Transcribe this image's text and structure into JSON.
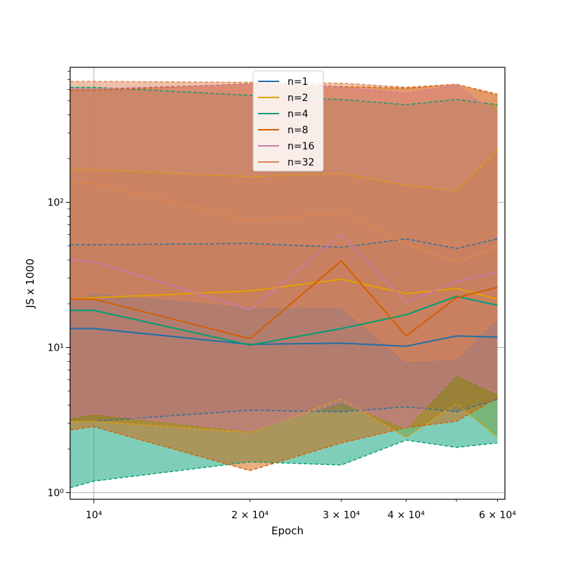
{
  "chart_data": {
    "type": "line",
    "title": "",
    "xlabel": "Epoch",
    "ylabel": "JS x 1000",
    "x_scale": "log",
    "y_scale": "log",
    "xlim": [
      9000,
      62000
    ],
    "ylim": [
      0.9,
      850
    ],
    "x": [
      9000,
      10000,
      20000,
      30000,
      40000,
      50000,
      60000
    ],
    "x_ticks": [
      {
        "value": 10000,
        "label": "10⁴"
      },
      {
        "value": 20000,
        "label": "2 × 10⁴"
      },
      {
        "value": 30000,
        "label": "3 × 10⁴"
      },
      {
        "value": 40000,
        "label": "4 × 10⁴"
      },
      {
        "value": 60000,
        "label": "6 × 10⁴"
      }
    ],
    "y_ticks": [
      {
        "value": 1,
        "label": "10⁰"
      },
      {
        "value": 10,
        "label": "10¹"
      },
      {
        "value": 100,
        "label": "10²"
      }
    ],
    "grid": true,
    "legend_position": "top-center",
    "series": [
      {
        "name": "n=1",
        "color": "#1f6fa8",
        "values": [
          13.5,
          13.5,
          10.5,
          10.7,
          10.2,
          12,
          11.8
        ],
        "upper": [
          51,
          51,
          52,
          49,
          56,
          48,
          56
        ],
        "lower": [
          3.1,
          3.1,
          3.7,
          3.6,
          3.9,
          3.6,
          4.4
        ]
      },
      {
        "name": "n=2",
        "color": "#e69f00",
        "values": [
          21.5,
          22,
          24.5,
          29.5,
          23.5,
          25.5,
          21.5
        ],
        "upper": [
          168,
          168,
          150,
          158,
          131,
          121,
          228
        ],
        "lower": [
          3.1,
          3.1,
          2.6,
          4.4,
          2.4,
          4.1,
          2.4
        ]
      },
      {
        "name": "n=4",
        "color": "#009e73",
        "values": [
          18,
          18,
          10.4,
          13.5,
          16.8,
          22.5,
          19.5
        ],
        "upper": [
          620,
          620,
          545,
          510,
          470,
          510,
          470
        ],
        "lower": [
          1.08,
          1.2,
          1.63,
          1.55,
          2.3,
          2.05,
          2.2
        ]
      },
      {
        "name": "n=8",
        "color": "#d55e00",
        "values": [
          21.5,
          21.5,
          11.5,
          39.5,
          12,
          22,
          26
        ],
        "upper": [
          590,
          590,
          655,
          625,
          610,
          650,
          555
        ],
        "lower": [
          2.7,
          2.85,
          1.42,
          2.2,
          2.8,
          3.1,
          4.5
        ]
      },
      {
        "name": "n=16",
        "color": "#cc79a7",
        "values": [
          40,
          39,
          18.2,
          60,
          20.5,
          28.5,
          33
        ],
        "upper": [
          605,
          605,
          650,
          620,
          560,
          640,
          400
        ],
        "lower": [
          3.3,
          3.5,
          2.65,
          4.2,
          2.8,
          6.5,
          4.8
        ]
      },
      {
        "name": "n=32",
        "color": "#dd8452",
        "values": [
          135,
          135,
          75,
          85,
          52,
          38.5,
          50
        ],
        "upper": [
          680,
          680,
          670,
          660,
          620,
          650,
          540
        ],
        "lower": [
          21,
          24,
          19,
          19,
          8,
          8.3,
          16
        ]
      }
    ]
  }
}
